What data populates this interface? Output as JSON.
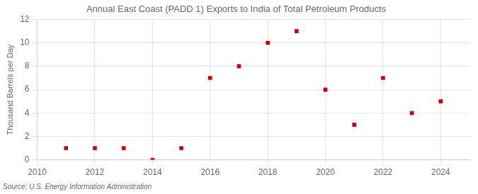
{
  "chart_data": {
    "type": "scatter",
    "title": "Annual East Coast (PADD 1) Exports to India of Total Petroleum Products",
    "ylabel": "Thousand Barrels per Day",
    "source": "Source: U.S. Energy Information Administration",
    "x": [
      2011,
      2012,
      2013,
      2014,
      2015,
      2016,
      2017,
      2018,
      2019,
      2020,
      2021,
      2022,
      2023,
      2024
    ],
    "values": [
      1,
      1,
      1,
      0,
      1,
      7,
      8,
      10,
      11,
      6,
      3,
      7,
      4,
      5
    ],
    "color": "#cc0000",
    "marker": "square",
    "xlim": [
      2010,
      2025
    ],
    "ylim": [
      0,
      12
    ],
    "xticks": [
      2010,
      2012,
      2014,
      2016,
      2018,
      2020,
      2022,
      2024
    ],
    "yticks": [
      0,
      2,
      4,
      6,
      8,
      10,
      12
    ],
    "grid": true
  }
}
